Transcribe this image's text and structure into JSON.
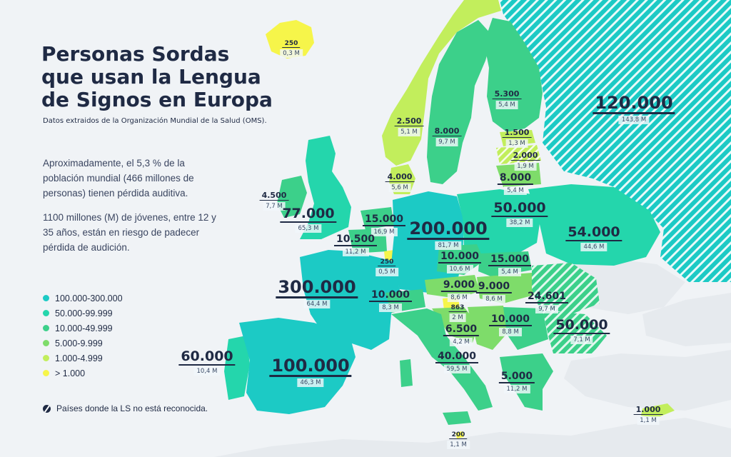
{
  "title": "Personas Sordas que usan la Lengua de Signos en Europa",
  "source": "Datos extraidos de la Organización Mundial de la Salud (OMS).",
  "paragraph1": "Aproximadamente, el 5,3 % de la población mundial (466 millones de personas) tienen pérdida auditiva.",
  "paragraph2": "1100 millones (M) de jóvenes, entre 12 y 35 años, están en riesgo de padecer pérdida de audición.",
  "legend": [
    {
      "label": "100.000-300.000",
      "color": "#1ccac5"
    },
    {
      "label": "50.000-99.999",
      "color": "#24d6ac"
    },
    {
      "label": "10.000-49.999",
      "color": "#3cd08a"
    },
    {
      "label": "5.000-9.999",
      "color": "#7edc6a"
    },
    {
      "label": "1.000-4.999",
      "color": "#c2ee5c"
    },
    {
      "label": "> 1.000",
      "color": "#f6f54a"
    }
  ],
  "note": "Países donde la LS no está reconocida.",
  "colors": {
    "background": "#f0f3f6",
    "text": "#1f2a44",
    "hatch": "#ffffff"
  },
  "labels": [
    {
      "id": "iceland",
      "value": "250",
      "pop": "0,3 M",
      "size": 5
    },
    {
      "id": "russia",
      "value": "120.000",
      "pop": "143,8 M",
      "size": 1
    },
    {
      "id": "norway",
      "value": "2.500",
      "pop": "5,1 M",
      "size": 4
    },
    {
      "id": "sweden",
      "value": "8.000",
      "pop": "9,7 M",
      "size": 4
    },
    {
      "id": "finland",
      "value": "5.300",
      "pop": "5,4 M",
      "size": 4
    },
    {
      "id": "estonia",
      "value": "1.500",
      "pop": "1,3 M",
      "size": 4
    },
    {
      "id": "latvia",
      "value": "2.000",
      "pop": "1,9 M",
      "size": 4
    },
    {
      "id": "lithuania",
      "value": "8.000",
      "pop": "5,4 M",
      "size": 3
    },
    {
      "id": "denmark",
      "value": "4.000",
      "pop": "5,6 M",
      "size": 4
    },
    {
      "id": "ireland",
      "value": "4.500",
      "pop": "7,7 M",
      "size": 4
    },
    {
      "id": "uk",
      "value": "77.000",
      "pop": "65,3 M",
      "size": 2
    },
    {
      "id": "netherlands",
      "value": "15.000",
      "pop": "16,9 M",
      "size": 3
    },
    {
      "id": "belgium",
      "value": "10.500",
      "pop": "11,2 M",
      "size": 3
    },
    {
      "id": "luxembourg",
      "value": "250",
      "pop": "0,5 M",
      "size": 5
    },
    {
      "id": "germany",
      "value": "200.000",
      "pop": "81,7 M",
      "size": 1
    },
    {
      "id": "poland",
      "value": "50.000",
      "pop": "38,2 M",
      "size": 2
    },
    {
      "id": "belarus",
      "value": "54.000",
      "pop": "44,6 M",
      "size": 2
    },
    {
      "id": "czechia",
      "value": "10.000",
      "pop": "10,6 M",
      "size": 3
    },
    {
      "id": "slovakia",
      "value": "15.000",
      "pop": "5,4 M",
      "size": 3
    },
    {
      "id": "austria",
      "value": "9.000",
      "pop": "8,6 M",
      "size": 3
    },
    {
      "id": "hungary",
      "value": "9.000",
      "pop": "8,6 M",
      "size": 3
    },
    {
      "id": "moldova",
      "value": "24.601",
      "pop": "9,7 M",
      "size": 3
    },
    {
      "id": "france",
      "value": "300.000",
      "pop": "64,4 M",
      "size": 1
    },
    {
      "id": "switzerland",
      "value": "10.000",
      "pop": "8,3 M",
      "size": 3
    },
    {
      "id": "slovenia",
      "value": "863",
      "pop": "2 M",
      "size": 5
    },
    {
      "id": "serbia",
      "value": "6.500",
      "pop": "4,2 M",
      "size": 3
    },
    {
      "id": "bulgaria",
      "value": "10.000",
      "pop": "8,8 M",
      "size": 3
    },
    {
      "id": "romania",
      "value": "50.000",
      "pop": "7,1 M",
      "size": 2
    },
    {
      "id": "portugal",
      "value": "60.000",
      "pop": "10,4 M",
      "size": 2
    },
    {
      "id": "spain",
      "value": "100.000",
      "pop": "46,3 M",
      "size": 1
    },
    {
      "id": "italy",
      "value": "40.000",
      "pop": "59,5 M",
      "size": 3
    },
    {
      "id": "greece",
      "value": "5.000",
      "pop": "11,2 M",
      "size": 3
    },
    {
      "id": "cyprus",
      "value": "1.000",
      "pop": "1,1 M",
      "size": 4
    },
    {
      "id": "malta",
      "value": "200",
      "pop": "1,1 M",
      "size": 5
    }
  ]
}
